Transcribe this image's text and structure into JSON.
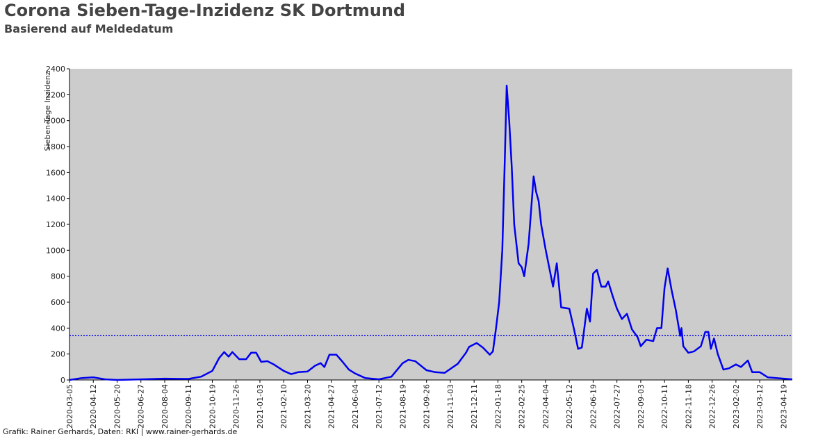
{
  "chart_data": {
    "type": "line",
    "title": "Corona Sieben-Tage-Inzidenz SK Dortmund",
    "subtitle": "Basierend auf Meldedatum",
    "ylabel": "Sieben-Tage Inzidenz",
    "footer": "Grafik: Rainer Gerhards, Daten: RKI | www.rainer-gerhards.de",
    "reference_line": 343,
    "ylim": [
      0,
      2400
    ],
    "yticks": [
      0,
      200,
      400,
      600,
      800,
      1000,
      1200,
      1400,
      1600,
      1800,
      2000,
      2200,
      2400
    ],
    "xlim": [
      "2020-03-05",
      "2023-05-03"
    ],
    "xticks": [
      "2020-03-05",
      "2020-04-12",
      "2020-05-20",
      "2020-06-27",
      "2020-08-04",
      "2020-09-11",
      "2020-10-19",
      "2020-11-26",
      "2021-01-03",
      "2021-02-10",
      "2021-03-20",
      "2021-04-27",
      "2021-06-04",
      "2021-07-12",
      "2021-08-19",
      "2021-09-26",
      "2021-11-03",
      "2021-12-11",
      "2022-01-18",
      "2022-02-25",
      "2022-04-04",
      "2022-05-12",
      "2022-06-19",
      "2022-07-27",
      "2022-09-03",
      "2022-10-11",
      "2022-11-18",
      "2022-12-26",
      "2023-02-02",
      "2023-03-12",
      "2023-04-19"
    ],
    "grid": false,
    "x": [
      "2020-03-05",
      "2020-03-25",
      "2020-04-12",
      "2020-05-01",
      "2020-05-20",
      "2020-06-27",
      "2020-08-04",
      "2020-09-11",
      "2020-10-01",
      "2020-10-19",
      "2020-10-30",
      "2020-11-07",
      "2020-11-14",
      "2020-11-20",
      "2020-12-01",
      "2020-12-12",
      "2020-12-20",
      "2020-12-28",
      "2021-01-05",
      "2021-01-15",
      "2021-01-25",
      "2021-02-10",
      "2021-02-22",
      "2021-03-05",
      "2021-03-20",
      "2021-04-01",
      "2021-04-10",
      "2021-04-16",
      "2021-04-24",
      "2021-05-05",
      "2021-05-15",
      "2021-05-25",
      "2021-06-04",
      "2021-06-20",
      "2021-07-12",
      "2021-08-01",
      "2021-08-19",
      "2021-08-28",
      "2021-09-08",
      "2021-09-26",
      "2021-10-10",
      "2021-10-25",
      "2021-11-03",
      "2021-11-15",
      "2021-11-28",
      "2021-12-03",
      "2021-12-15",
      "2021-12-25",
      "2022-01-05",
      "2022-01-10",
      "2022-01-15",
      "2022-01-20",
      "2022-01-25",
      "2022-01-29",
      "2022-02-01",
      "2022-02-05",
      "2022-02-09",
      "2022-02-13",
      "2022-02-20",
      "2022-02-25",
      "2022-03-01",
      "2022-03-08",
      "2022-03-16",
      "2022-03-20",
      "2022-03-24",
      "2022-03-28",
      "2022-04-04",
      "2022-04-16",
      "2022-04-22",
      "2022-04-29",
      "2022-05-12",
      "2022-05-20",
      "2022-05-26",
      "2022-06-01",
      "2022-06-05",
      "2022-06-09",
      "2022-06-14",
      "2022-06-19",
      "2022-06-25",
      "2022-07-02",
      "2022-07-09",
      "2022-07-13",
      "2022-07-20",
      "2022-07-27",
      "2022-08-04",
      "2022-08-12",
      "2022-08-20",
      "2022-08-29",
      "2022-09-03",
      "2022-09-12",
      "2022-09-23",
      "2022-09-29",
      "2022-10-06",
      "2022-10-11",
      "2022-10-16",
      "2022-10-22",
      "2022-10-29",
      "2022-11-05",
      "2022-11-07",
      "2022-11-10",
      "2022-11-18",
      "2022-11-27",
      "2022-12-08",
      "2022-12-15",
      "2022-12-20",
      "2022-12-24",
      "2022-12-29",
      "2023-01-04",
      "2023-01-13",
      "2023-01-22",
      "2023-02-02",
      "2023-02-10",
      "2023-02-21",
      "2023-02-28",
      "2023-03-12",
      "2023-03-25",
      "2023-04-19",
      "2023-05-03"
    ],
    "series": [
      {
        "name": "Sieben-Tage Inzidenz",
        "color": "#0000ee",
        "values": [
          0,
          15,
          20,
          5,
          0,
          5,
          10,
          8,
          25,
          70,
          170,
          215,
          180,
          215,
          160,
          160,
          210,
          210,
          140,
          145,
          120,
          70,
          45,
          60,
          65,
          110,
          130,
          100,
          195,
          195,
          140,
          80,
          50,
          15,
          5,
          25,
          130,
          155,
          145,
          75,
          60,
          55,
          85,
          125,
          210,
          255,
          285,
          250,
          195,
          220,
          400,
          600,
          1000,
          1700,
          2270,
          2000,
          1650,
          1200,
          900,
          870,
          800,
          1050,
          1570,
          1450,
          1380,
          1200,
          1010,
          720,
          900,
          560,
          550,
          380,
          240,
          250,
          400,
          550,
          450,
          820,
          850,
          720,
          720,
          760,
          650,
          550,
          470,
          510,
          390,
          330,
          260,
          310,
          300,
          400,
          400,
          710,
          860,
          700,
          540,
          340,
          400,
          260,
          210,
          220,
          260,
          370,
          370,
          240,
          320,
          200,
          80,
          90,
          120,
          100,
          150,
          60,
          60,
          20,
          10,
          5
        ]
      }
    ]
  }
}
